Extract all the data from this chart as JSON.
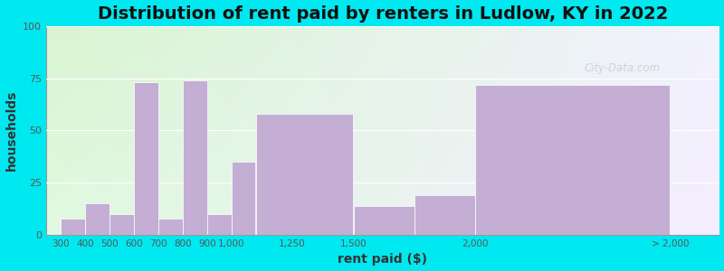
{
  "title": "Distribution of rent paid by renters in Ludlow, KY in 2022",
  "xlabel": "rent paid ($)",
  "ylabel": "households",
  "bar_color": "#c4aed4",
  "background_outer": "#00e8f0",
  "ylim": [
    0,
    100
  ],
  "yticks": [
    0,
    25,
    50,
    75,
    100
  ],
  "watermark": "City-Data.com",
  "title_fontsize": 14,
  "axis_label_fontsize": 10,
  "bar_left_edges": [
    300,
    400,
    500,
    600,
    700,
    800,
    900,
    1000,
    1100,
    1500,
    1750,
    2000
  ],
  "bar_right_edges": [
    400,
    500,
    600,
    700,
    800,
    900,
    1000,
    1100,
    1500,
    1750,
    2000,
    2800
  ],
  "bar_heights": [
    8,
    15,
    10,
    73,
    8,
    74,
    10,
    35,
    58,
    14,
    19,
    72
  ],
  "xtick_positions": [
    300,
    400,
    500,
    600,
    700,
    800,
    900,
    1000,
    1250,
    1500,
    2000,
    2800
  ],
  "xtick_labels": [
    "300",
    "400",
    "500",
    "600",
    "700",
    "800",
    "900",
    "1,000",
    "1,250",
    "1,500",
    "2,000",
    "> 2,000"
  ],
  "xlim": [
    240,
    3000
  ]
}
